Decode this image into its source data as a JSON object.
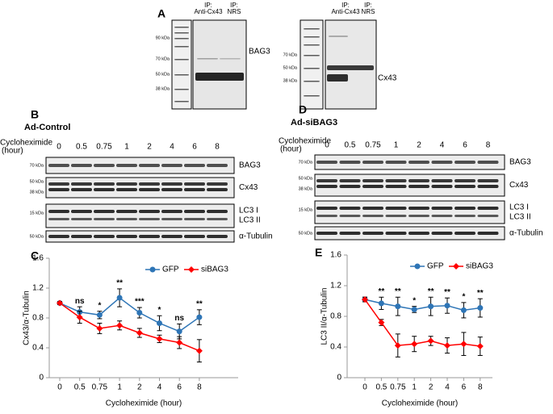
{
  "panels": {
    "a": {
      "label": "A",
      "left": {
        "ip1": [
          "IP:",
          "Anti-Cx43"
        ],
        "ip2": [
          "IP:",
          "NRS"
        ],
        "markers": [
          "90 kDa",
          "70 kDa",
          "50 kDa",
          "38 kDa"
        ],
        "protein": "BAG3"
      },
      "right": {
        "ip1": [
          "IP:",
          "Anti-Cx43"
        ],
        "ip2": [
          "IP:",
          "NRS"
        ],
        "markers": [
          "70 kDa",
          "50 kDa",
          "38 kDa"
        ],
        "protein": "Cx43"
      }
    },
    "b": {
      "label": "B",
      "title": "Ad-Control",
      "treatment": [
        "Cycloheximide",
        "(hour)"
      ],
      "times": [
        "0",
        "0.5",
        "0.75",
        "1",
        "2",
        "4",
        "6",
        "8"
      ],
      "markers": [
        "70 kDa",
        "50 kDa",
        "38 kDa",
        "15 kDa",
        "50 kDa"
      ],
      "proteins": [
        "BAG3",
        "Cx43",
        "LC3 I",
        "LC3 II",
        "α-Tubulin"
      ]
    },
    "d": {
      "label": "D",
      "title": "Ad-siBAG3",
      "treatment": [
        "Cycloheximide",
        "(hour)"
      ],
      "times": [
        "0",
        "0.5",
        "0.75",
        "1",
        "2",
        "4",
        "6",
        "8"
      ],
      "markers": [
        "70 kDa",
        "50 kDa",
        "38 kDa",
        "15 kDa",
        "50 kDa"
      ],
      "proteins": [
        "BAG3",
        "Cx43",
        "LC3 I",
        "LC3 II",
        "α-Tubulin"
      ]
    }
  },
  "chart_data": [
    {
      "type": "line",
      "panel_label": "C",
      "categories": [
        "0",
        "0.5",
        "0.75",
        "1",
        "2",
        "4",
        "6",
        "8"
      ],
      "x_label": "Cycloheximide (hour)",
      "y_label": "Cx43/α-Tubulin",
      "ylim": [
        0,
        1.6
      ],
      "yticks": [
        0,
        0.4,
        0.8,
        1.2,
        1.6
      ],
      "series": [
        {
          "name": "GFP",
          "color": "#2e75b6",
          "marker": "circle",
          "values": [
            1.0,
            0.88,
            0.84,
            1.07,
            0.87,
            0.73,
            0.62,
            0.81
          ],
          "errors": [
            0.02,
            0.07,
            0.05,
            0.12,
            0.07,
            0.1,
            0.1,
            0.1
          ]
        },
        {
          "name": "siBAG3",
          "color": "#ff0000",
          "marker": "diamond",
          "values": [
            1.0,
            0.81,
            0.66,
            0.7,
            0.6,
            0.52,
            0.47,
            0.36
          ],
          "errors": [
            0.02,
            0.08,
            0.07,
            0.06,
            0.06,
            0.05,
            0.08,
            0.15
          ]
        }
      ],
      "annotations": [
        null,
        "ns",
        "*",
        "**",
        "***",
        "*",
        "ns",
        "**"
      ]
    },
    {
      "type": "line",
      "panel_label": "E",
      "categories": [
        "0",
        "0.5",
        "0.75",
        "1",
        "2",
        "4",
        "6",
        "8"
      ],
      "x_label": "Cycloheximide (hour)",
      "y_label": "LC3 II/α-Tubulin",
      "ylim": [
        0,
        1.6
      ],
      "yticks": [
        0,
        0.4,
        0.8,
        1.2,
        1.6
      ],
      "series": [
        {
          "name": "GFP",
          "color": "#2e75b6",
          "marker": "circle",
          "values": [
            1.02,
            0.97,
            0.93,
            0.89,
            0.93,
            0.94,
            0.88,
            0.91
          ],
          "errors": [
            0.03,
            0.08,
            0.12,
            0.04,
            0.12,
            0.1,
            0.1,
            0.12
          ]
        },
        {
          "name": "siBAG3",
          "color": "#ff0000",
          "marker": "diamond",
          "values": [
            1.02,
            0.72,
            0.42,
            0.44,
            0.48,
            0.42,
            0.44,
            0.41
          ],
          "errors": [
            0.03,
            0.04,
            0.15,
            0.1,
            0.06,
            0.1,
            0.15,
            0.12
          ]
        }
      ],
      "annotations": [
        null,
        "**",
        "**",
        "*",
        "**",
        "**",
        "*",
        "**"
      ]
    }
  ]
}
